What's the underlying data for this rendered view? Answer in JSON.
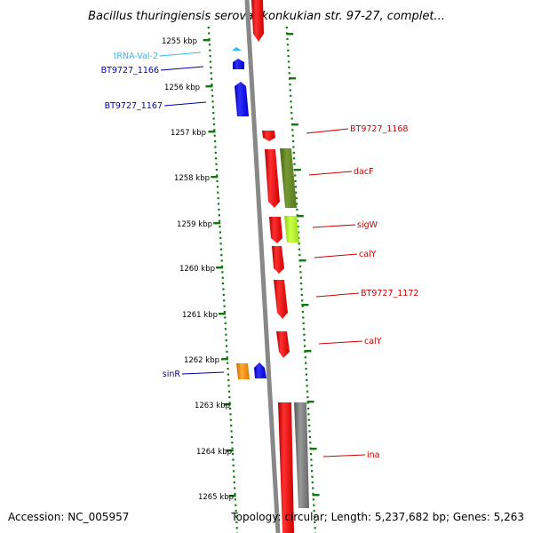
{
  "title": "Bacillus thuringiensis serovar konkukian str. 97-27, complet...",
  "footer": {
    "accession": "Accession: NC_005957",
    "topology": "Topology: circular; Length: 5,237,682 bp; Genes: 5,263"
  },
  "colors": {
    "forward": "#1010ee",
    "reverse": "#ee1010",
    "trna": "#33bbee",
    "sinr": "#ff8800",
    "dacf": "#668822",
    "sigw": "#aaee22",
    "ina": "#777777",
    "ticks": "#117711",
    "backbone": "#888888"
  },
  "ticks": [
    "1255 kbp",
    "1256 kbp",
    "1257 kbp",
    "1258 kbp",
    "1259 kbp",
    "1260 kbp",
    "1261 kbp",
    "1262 kbp",
    "1263 kbp",
    "1264 kbp",
    "1265 kbp"
  ],
  "gene_labels": [
    {
      "text": "tRNA-Val-2",
      "side": "left",
      "color": "#33bbee"
    },
    {
      "text": "BT9727_1166",
      "side": "left",
      "color": "#0000aa"
    },
    {
      "text": "BT9727_1167",
      "side": "left",
      "color": "#0000aa"
    },
    {
      "text": "BT9727_1168",
      "side": "right",
      "color": "#cc0000"
    },
    {
      "text": "dacF",
      "side": "right",
      "color": "#cc0000"
    },
    {
      "text": "sigW",
      "side": "right",
      "color": "#cc0000"
    },
    {
      "text": "calY",
      "side": "right",
      "color": "#cc0000"
    },
    {
      "text": "BT9727_1172",
      "side": "right",
      "color": "#cc0000"
    },
    {
      "text": "calY",
      "side": "right",
      "color": "#cc0000"
    },
    {
      "text": "sinR",
      "side": "left",
      "color": "#0000aa"
    },
    {
      "text": "ina",
      "side": "right",
      "color": "#cc0000"
    }
  ]
}
